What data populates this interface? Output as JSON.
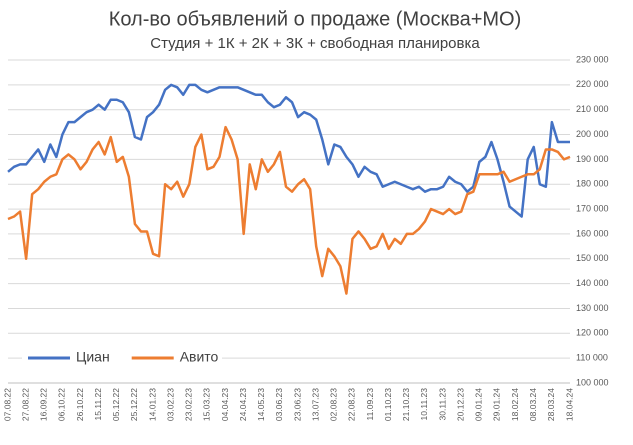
{
  "chart_data": {
    "type": "line",
    "title": "Кол-во объявлений о продаже (Москва+МО)",
    "subtitle": "Студия + 1К + 2К + 3К + свободная планировка",
    "categories": [
      "07.08.22",
      null,
      null,
      "27.08.22",
      null,
      null,
      "16.09.22",
      null,
      null,
      "06.10.22",
      null,
      null,
      "26.10.22",
      null,
      null,
      "15.11.22",
      null,
      null,
      "05.12.22",
      null,
      null,
      "25.12.22",
      null,
      null,
      "14.01.23",
      null,
      null,
      "03.02.23",
      null,
      null,
      "23.02.23",
      null,
      null,
      "15.03.23",
      null,
      null,
      "04.04.23",
      null,
      null,
      "24.04.23",
      null,
      null,
      "14.05.23",
      null,
      null,
      "03.06.23",
      null,
      null,
      "23.06.23",
      null,
      null,
      "13.07.23",
      null,
      null,
      "02.08.23",
      null,
      null,
      "22.08.23",
      null,
      null,
      "11.09.23",
      null,
      null,
      "01.10.23",
      null,
      null,
      "21.10.23",
      null,
      null,
      "10.11.23",
      null,
      null,
      "30.11.23",
      null,
      null,
      "20.12.23",
      null,
      null,
      "09.01.24",
      null,
      null,
      "29.01.24",
      null,
      null,
      "18.02.24",
      null,
      null,
      "08.03.24",
      null,
      null,
      "28.03.24",
      null,
      null,
      "18.04.24"
    ],
    "series": [
      {
        "name": "Циан",
        "color": "#4472c4",
        "values": [
          185000,
          187000,
          188000,
          188000,
          191000,
          194000,
          189000,
          196000,
          191000,
          200000,
          205000,
          205000,
          207000,
          209000,
          210000,
          212000,
          210000,
          214000,
          214000,
          213000,
          209000,
          199000,
          198000,
          207000,
          209000,
          212000,
          218000,
          220000,
          219000,
          216000,
          220000,
          220000,
          218000,
          217000,
          218000,
          219000,
          219000,
          219000,
          219000,
          218000,
          217000,
          216000,
          216000,
          213000,
          211000,
          212000,
          215000,
          213000,
          207000,
          209000,
          208000,
          206000,
          198000,
          188000,
          196000,
          195000,
          191000,
          188000,
          183000,
          187000,
          185000,
          184000,
          179000,
          180000,
          181000,
          180000,
          179000,
          178000,
          179000,
          177000,
          178000,
          178000,
          179000,
          183000,
          181000,
          180000,
          177000,
          179000,
          189000,
          191000,
          197000,
          190000,
          181000,
          171000,
          169000,
          167000,
          190000,
          195000,
          180000,
          179000,
          205000,
          197000,
          197000,
          197000
        ]
      },
      {
        "name": "Авито",
        "color": "#ed7d31",
        "values": [
          166000,
          167000,
          169000,
          150000,
          176000,
          178000,
          181000,
          183000,
          184000,
          190000,
          192000,
          190000,
          186000,
          189000,
          194000,
          197000,
          192000,
          199000,
          189000,
          191000,
          183000,
          164000,
          161000,
          161000,
          152000,
          151000,
          180000,
          178000,
          181000,
          175000,
          180000,
          195000,
          200000,
          186000,
          187000,
          191000,
          203000,
          198000,
          190000,
          160000,
          188000,
          178000,
          190000,
          185000,
          188000,
          193000,
          179000,
          177000,
          180000,
          182000,
          178000,
          155000,
          143000,
          154000,
          151000,
          147000,
          136000,
          158000,
          161000,
          158000,
          154000,
          155000,
          160000,
          154000,
          158000,
          156000,
          160000,
          160000,
          162000,
          165000,
          170000,
          169000,
          168000,
          170000,
          168000,
          169000,
          176000,
          177000,
          184000,
          184000,
          184000,
          184000,
          185000,
          181000,
          182000,
          183000,
          184000,
          184000,
          186000,
          194000,
          194000,
          193000,
          190000,
          191000
        ]
      }
    ],
    "ylim": [
      100000,
      230000
    ],
    "yticks": [
      {
        "value": 100000,
        "label": "100 000"
      },
      {
        "value": 110000,
        "label": "110 000"
      },
      {
        "value": 120000,
        "label": "120 000"
      },
      {
        "value": 130000,
        "label": "130 000"
      },
      {
        "value": 140000,
        "label": "140 000"
      },
      {
        "value": 150000,
        "label": "150 000"
      },
      {
        "value": 160000,
        "label": "160 000"
      },
      {
        "value": 170000,
        "label": "170 000"
      },
      {
        "value": 180000,
        "label": "180 000"
      },
      {
        "value": 190000,
        "label": "190 000"
      },
      {
        "value": 200000,
        "label": "200 000"
      },
      {
        "value": 210000,
        "label": "210 000"
      },
      {
        "value": 220000,
        "label": "220 000"
      },
      {
        "value": 230000,
        "label": "230 000"
      }
    ],
    "grid": true,
    "legend": "lower-left"
  }
}
